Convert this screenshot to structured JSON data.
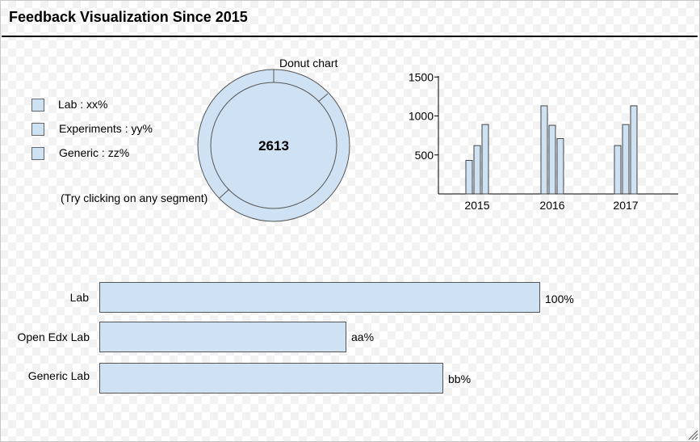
{
  "header": {
    "title": "Feedback Visualization Since 2015"
  },
  "legend": {
    "items": [
      {
        "label": "Lab : xx%"
      },
      {
        "label": "Experiments : yy%"
      },
      {
        "label": "Generic : zz%"
      }
    ],
    "hint": "(Try clicking on any segment)"
  },
  "donut": {
    "title": "Donut chart",
    "center_value": "2613",
    "fill_color": "#cfe2f3",
    "stroke_color": "#555555"
  },
  "chart_data": [
    {
      "type": "bar",
      "categories": [
        "2015",
        "2016",
        "2017"
      ],
      "series": [
        {
          "values": [
            430,
            1130,
            620
          ]
        },
        {
          "values": [
            620,
            880,
            890
          ]
        },
        {
          "values": [
            890,
            710,
            1130
          ]
        }
      ],
      "yticks": [
        "1500",
        "1000",
        "500"
      ],
      "ytick_values": [
        1500,
        1000,
        500
      ],
      "ylim": [
        0,
        1650
      ],
      "grid": false
    },
    {
      "type": "bar",
      "orientation": "horizontal",
      "categories": [
        "Lab",
        "Open Edx Lab",
        "Generic Lab"
      ],
      "values": [
        100,
        56,
        78
      ],
      "value_labels": [
        "100%",
        "aa%",
        "bb%"
      ],
      "xlim": [
        0,
        100
      ]
    }
  ]
}
